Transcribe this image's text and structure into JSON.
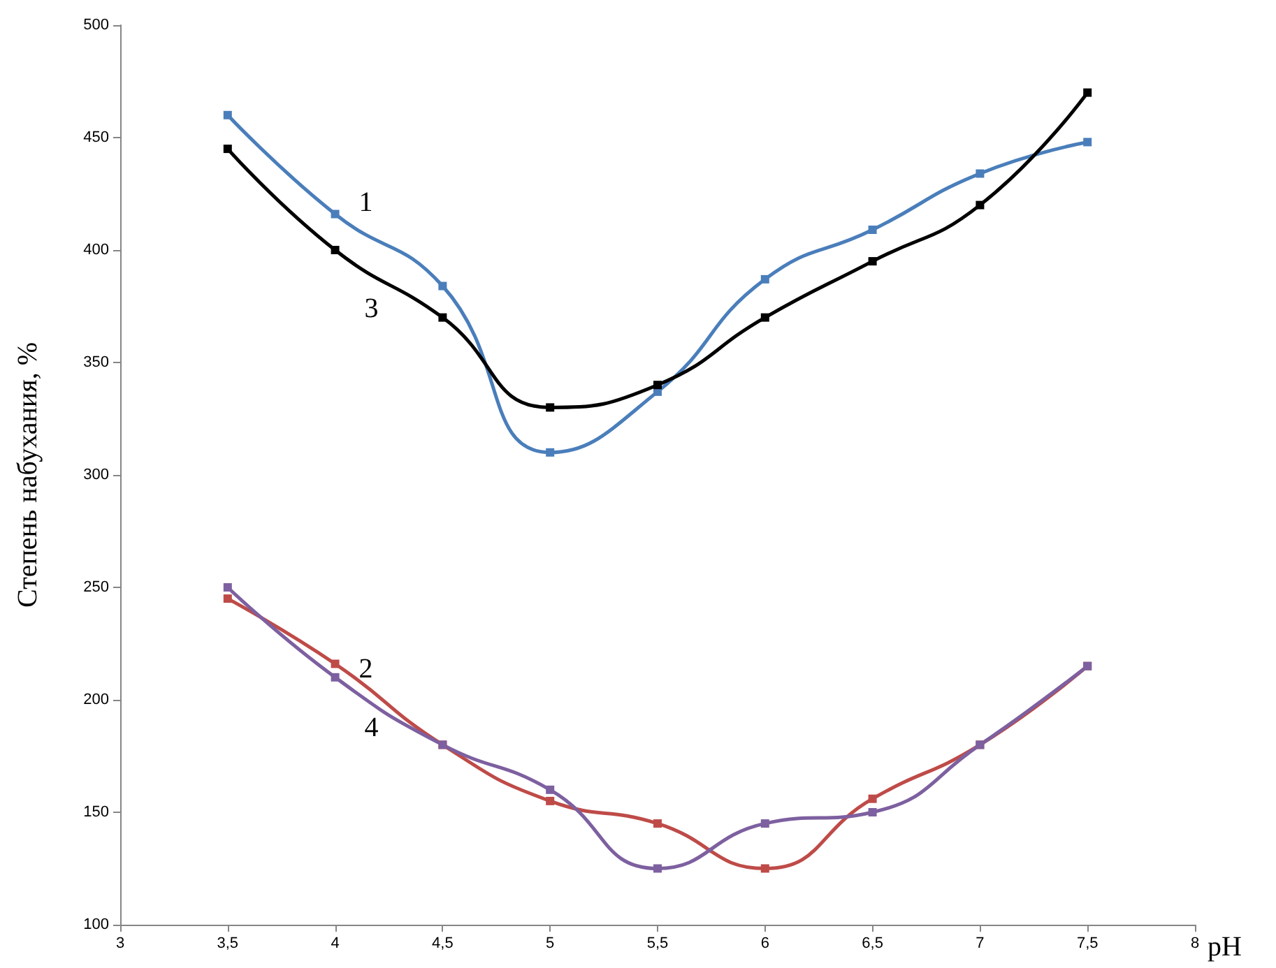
{
  "chart_data": {
    "type": "line",
    "xlabel": "pH",
    "ylabel": "Степень набухания, %",
    "x": [
      3.5,
      4,
      4.5,
      5,
      5.5,
      6,
      6.5,
      7,
      7.5
    ],
    "xlim": [
      3,
      8
    ],
    "xticks": [
      3,
      {
        "value": 3.5,
        "label": "3,5"
      },
      4,
      {
        "value": 4.5,
        "label": "4,5"
      },
      5,
      {
        "value": 5.5,
        "label": "5,5"
      },
      6,
      {
        "value": 6.5,
        "label": "6,5"
      },
      7,
      {
        "value": 7.5,
        "label": "7,5"
      },
      8
    ],
    "ylim": [
      100,
      500
    ],
    "yticks": [
      100,
      150,
      200,
      250,
      300,
      350,
      400,
      450,
      500
    ],
    "marker": "square",
    "line_style": "solid",
    "series": [
      {
        "name": "1",
        "color": "#4a7ebb",
        "values": [
          460,
          416,
          384,
          310,
          337,
          387,
          409,
          434,
          448
        ]
      },
      {
        "name": "2",
        "color": "#be4b48",
        "values": [
          245,
          216,
          180,
          155,
          145,
          125,
          156,
          180,
          215
        ]
      },
      {
        "name": "3",
        "color": "#000000",
        "values": [
          445,
          400,
          370,
          330,
          340,
          370,
          395,
          420,
          470
        ]
      },
      {
        "name": "4",
        "color": "#7d60a0",
        "values": [
          250,
          210,
          180,
          160,
          125,
          145,
          150,
          180,
          215
        ]
      }
    ]
  }
}
